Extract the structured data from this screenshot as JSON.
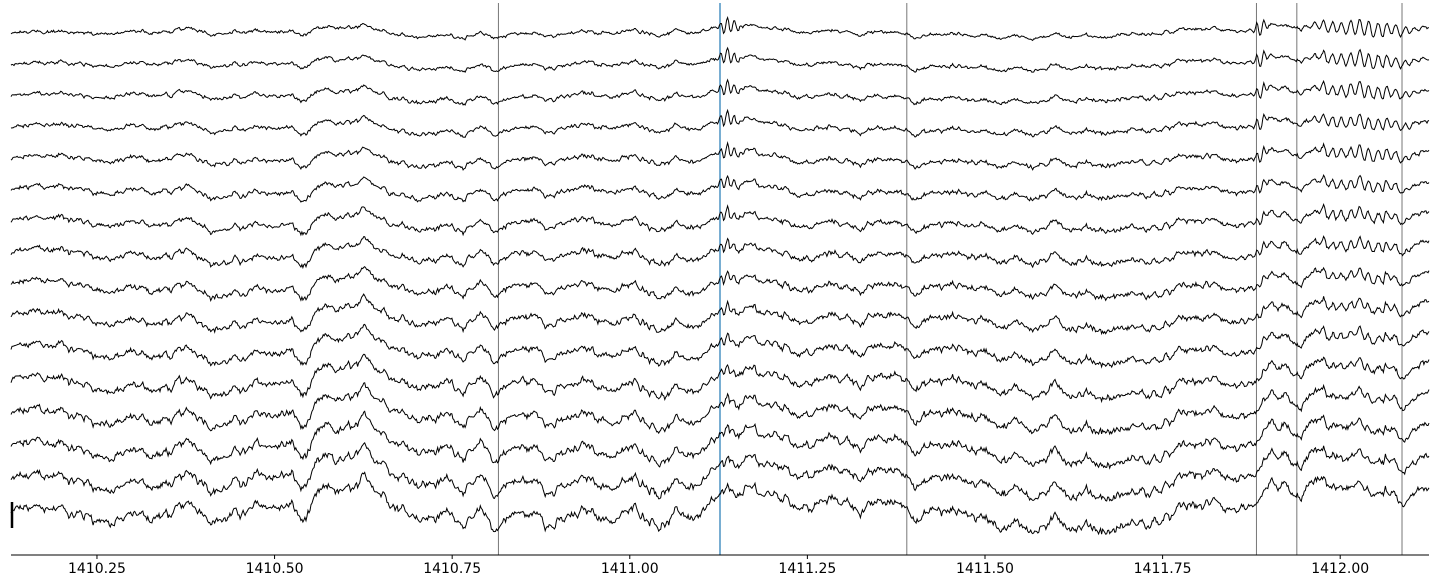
{
  "chart_data": {
    "type": "line",
    "title": "",
    "xlabel": "",
    "ylabel": "",
    "xlim": [
      1410.129,
      1412.125
    ],
    "x_ticks": [
      {
        "value": 1410.25,
        "label": "1410.25"
      },
      {
        "value": 1410.5,
        "label": "1410.50"
      },
      {
        "value": 1410.75,
        "label": "1410.75"
      },
      {
        "value": 1411.0,
        "label": "1411.00"
      },
      {
        "value": 1411.25,
        "label": "1411.25"
      },
      {
        "value": 1411.5,
        "label": "1411.50"
      },
      {
        "value": 1411.75,
        "label": "1411.75"
      },
      {
        "value": 1412.0,
        "label": "1412.00"
      }
    ],
    "channel_count": 16,
    "event_markers": [
      {
        "x": 1410.815,
        "color": "#555555"
      },
      {
        "x": 1411.127,
        "color": "#1f77b4"
      },
      {
        "x": 1411.39,
        "color": "#555555"
      },
      {
        "x": 1411.882,
        "color": "#555555"
      },
      {
        "x": 1411.939,
        "color": "#555555"
      },
      {
        "x": 1412.087,
        "color": "#555555"
      }
    ],
    "scale_bar": true,
    "grid": false,
    "trace_color": "#000000"
  }
}
